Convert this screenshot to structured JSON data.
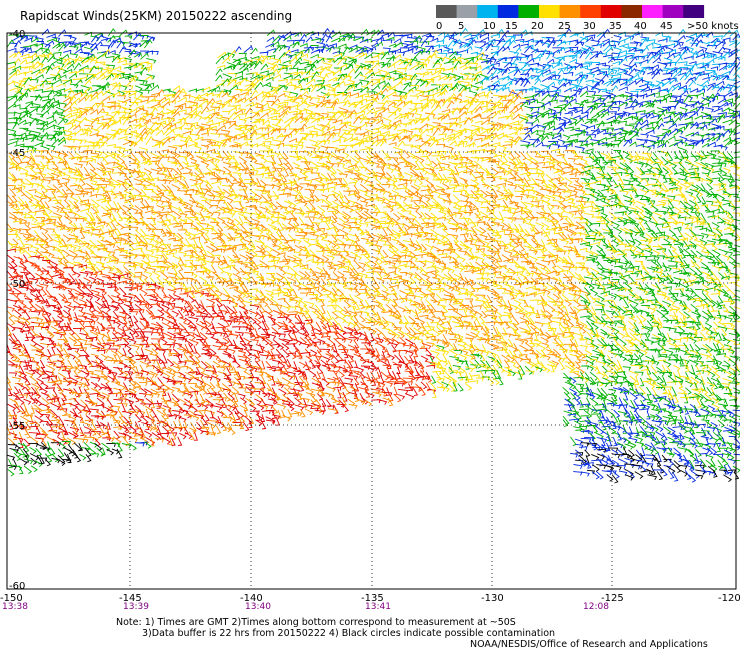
{
  "title": "Rapidscat Winds(25KM) 20150222 ascending",
  "legend": {
    "ticks": [
      "0",
      "5",
      "10",
      "15",
      "20",
      "25",
      "30",
      "35",
      "40",
      "45",
      ">50 knots"
    ],
    "colors": [
      "#5a5a5a",
      "#9aa0a8",
      "#00b4f0",
      "#0028e0",
      "#00b000",
      "#ffe000",
      "#ff9000",
      "#ff4000",
      "#e00000",
      "#8b2800",
      "#ff20ff",
      "#a000c0",
      "#400080"
    ]
  },
  "lat_labels": [
    "-40",
    "-45",
    "-50",
    "-55",
    "-60"
  ],
  "lon_labels": [
    "-150",
    "-145",
    "-140",
    "-135",
    "-130",
    "-125",
    "-120"
  ],
  "time_labels": [
    "13:38",
    "13:39",
    "13:40",
    "13:41",
    "12:08"
  ],
  "notes": {
    "line1": "Note: 1) Times are GMT 2)Times along bottom correspond to measurement at ~50S",
    "line2": "3)Data buffer is 22 hrs from 20150222 4) Black circles indicate possible contamination",
    "credit": "NOAA/NESDIS/Office of Research and Applications"
  }
}
